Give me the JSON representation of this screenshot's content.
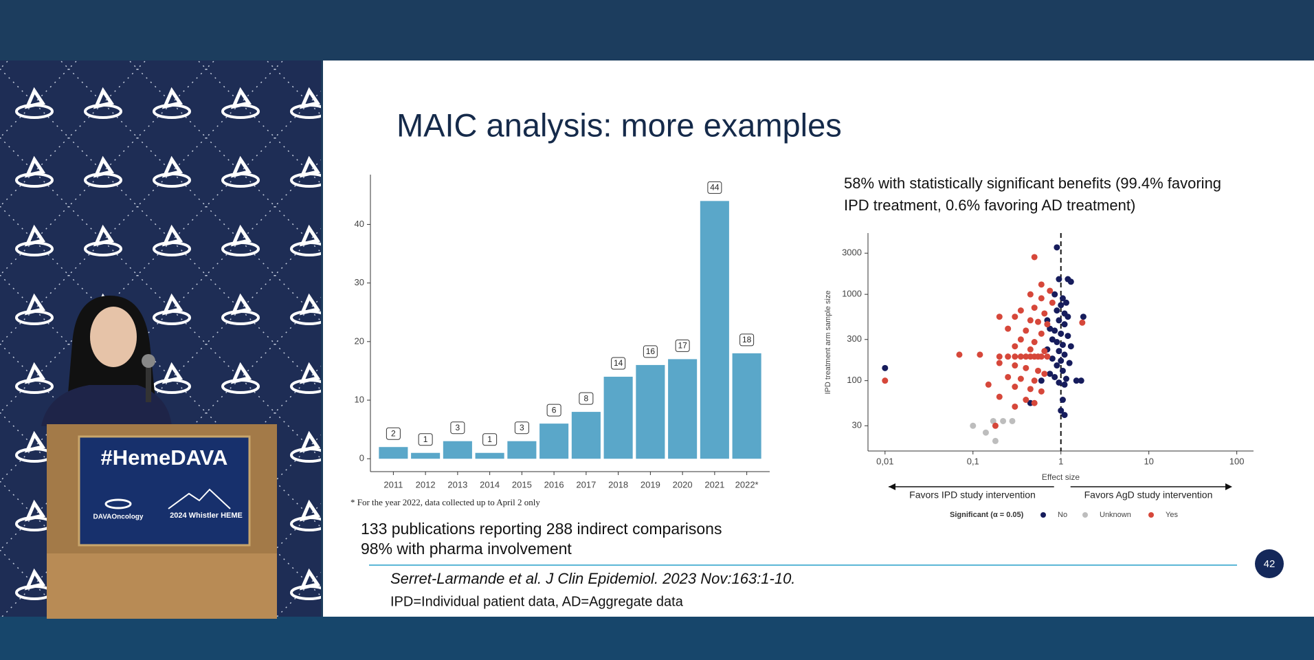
{
  "slide": {
    "title": "MAIC analysis: more examples",
    "points": [
      "133 publications reporting 288 indirect comparisons",
      "98% with pharma involvement"
    ],
    "citation": "Serret-Larmande et al. J Clin Epidemiol. 2023 Nov:163:1-10.",
    "abbreviations": "IPD=Individual patient data, AD=Aggregate data",
    "page_number": "42"
  },
  "podium": {
    "hashtag": "#HemeDAVA",
    "logo_left": "DAVAOncology",
    "logo_right": "2024 Whistler HEME"
  },
  "chart_data": [
    {
      "type": "bar",
      "categories": [
        "2011",
        "2012",
        "2013",
        "2014",
        "2015",
        "2016",
        "2017",
        "2018",
        "2019",
        "2020",
        "2021",
        "2022*"
      ],
      "values": [
        2,
        1,
        3,
        1,
        3,
        6,
        8,
        14,
        16,
        17,
        44,
        18
      ],
      "color": "#5aa7c9",
      "ylim": [
        -2.2,
        48.5
      ],
      "yticks": [
        0,
        10,
        20,
        30,
        40
      ],
      "grid": false,
      "note": "* For the year 2022, data collected up to April 2 only"
    },
    {
      "type": "scatter",
      "title": [
        "58% with statistically significant benefits (99.4% favoring",
        "IPD treatment, 0.6% favoring AD treatment)"
      ],
      "xlabel": "Effect size",
      "ylabel": "IPD treatment arm sample size",
      "xscale": "log",
      "yscale": "log",
      "xlim": [
        0.0064,
        155
      ],
      "ylim": [
        15.3,
        5130
      ],
      "xticks": [
        {
          "value": 0.01,
          "label": "0,01"
        },
        {
          "value": 0.1,
          "label": "0,1"
        },
        1,
        10,
        100
      ],
      "yticks": [
        30,
        100,
        300,
        1000,
        3000
      ],
      "refline_x": 1,
      "grid": false,
      "annotations": [
        "Favors IPD study intervention",
        "Favors AgD study intervention"
      ],
      "legend_title": "Significant (α = 0.05)",
      "legend": "bottom",
      "series": [
        {
          "name": "No",
          "color": "#161c5c",
          "x": [
            0.9,
            1.2,
            0.95,
            1.3,
            0.85,
            1.05,
            1.15,
            1.0,
            0.9,
            1.1,
            1.2,
            1.8,
            0.7,
            0.95,
            1.1,
            0.75,
            0.85,
            1.0,
            1.2,
            0.8,
            0.9,
            1.05,
            1.3,
            0.7,
            0.95,
            1.1,
            0.8,
            1.0,
            1.25,
            0.9,
            1.05,
            0.75,
            0.85,
            1.15,
            1.5,
            1.7,
            0.95,
            1.1,
            0.6,
            1.05,
            0.45,
            1.0,
            1.1,
            0.01
          ],
          "y": [
            3500,
            1500,
            1500,
            1400,
            1000,
            900,
            800,
            750,
            650,
            600,
            550,
            550,
            500,
            500,
            450,
            400,
            380,
            350,
            330,
            300,
            280,
            260,
            250,
            230,
            220,
            200,
            180,
            170,
            160,
            150,
            130,
            120,
            110,
            105,
            100,
            100,
            95,
            90,
            100,
            60,
            55,
            45,
            40,
            140
          ]
        },
        {
          "name": "Unknown",
          "color": "#bdbdbd",
          "x": [
            0.1,
            0.17,
            0.22,
            0.28,
            0.18,
            0.14
          ],
          "y": [
            30,
            34,
            34,
            34,
            20,
            25
          ]
        },
        {
          "name": "Yes",
          "color": "#d6473a",
          "x": [
            0.5,
            0.6,
            0.75,
            0.45,
            0.6,
            0.8,
            0.5,
            0.35,
            0.65,
            0.2,
            0.3,
            0.45,
            0.55,
            0.7,
            1.75,
            0.25,
            0.4,
            0.6,
            0.35,
            0.5,
            0.3,
            0.45,
            0.65,
            0.07,
            0.12,
            0.2,
            0.25,
            0.3,
            0.35,
            0.4,
            0.45,
            0.5,
            0.55,
            0.6,
            0.7,
            0.2,
            0.3,
            0.4,
            0.55,
            0.65,
            0.25,
            0.35,
            0.5,
            0.15,
            0.3,
            0.45,
            0.6,
            0.2,
            0.4,
            0.5,
            0.3,
            0.01,
            0.18
          ],
          "y": [
            2700,
            1300,
            1100,
            1000,
            900,
            800,
            700,
            650,
            600,
            550,
            550,
            500,
            480,
            450,
            470,
            400,
            380,
            350,
            300,
            280,
            250,
            230,
            220,
            200,
            200,
            190,
            190,
            190,
            190,
            190,
            190,
            190,
            190,
            190,
            190,
            160,
            150,
            140,
            130,
            120,
            110,
            105,
            100,
            90,
            85,
            80,
            75,
            65,
            60,
            55,
            50,
            100,
            30
          ]
        }
      ]
    }
  ]
}
